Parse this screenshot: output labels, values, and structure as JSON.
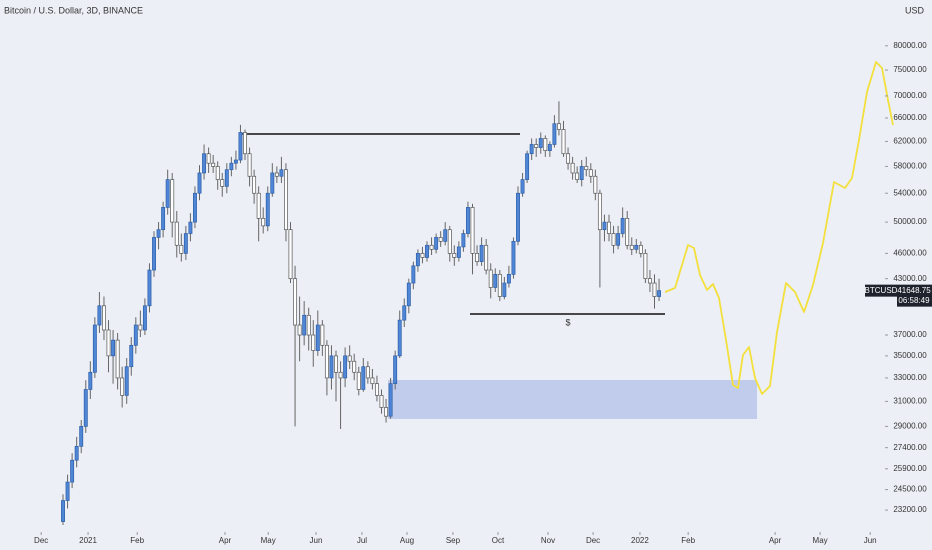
{
  "chart_data": {
    "type": "candlestick",
    "title": "Bitcoin / U.S. Dollar, 3D, BINANCE",
    "currency": "USD",
    "symbol": "BTCUSD",
    "last_price_label": "41648.75",
    "countdown": "06:58:49",
    "support_label": "$",
    "log_scale": true,
    "up_color": "#4f86d6",
    "down_color": "#ffffff",
    "ylim": [
      22000,
      90400
    ],
    "xlim": [
      -13.85,
      180.66
    ],
    "yticks": [
      {
        "value": 23200,
        "label": "23200.00"
      },
      {
        "value": 24500,
        "label": "24500.00"
      },
      {
        "value": 25900,
        "label": "25900.00"
      },
      {
        "value": 27400,
        "label": "27400.00"
      },
      {
        "value": 29000,
        "label": "29000.00"
      },
      {
        "value": 31000,
        "label": "31000.00"
      },
      {
        "value": 33000,
        "label": "33000.00"
      },
      {
        "value": 35000,
        "label": "35000.00"
      },
      {
        "value": 37000,
        "label": "37000.00"
      },
      {
        "value": 43000,
        "label": "43000.00"
      },
      {
        "value": 46000,
        "label": "46000.00"
      },
      {
        "value": 50000,
        "label": "50000.00"
      },
      {
        "value": 54000,
        "label": "54000.00"
      },
      {
        "value": 58000,
        "label": "58000.00"
      },
      {
        "value": 62000,
        "label": "62000.00"
      },
      {
        "value": 66000,
        "label": "66000.00"
      },
      {
        "value": 70000,
        "label": "70000.00"
      },
      {
        "value": 75000,
        "label": "75000.00"
      },
      {
        "value": 80000,
        "label": "80000.00"
      }
    ],
    "xticks": [
      {
        "value": -4.8,
        "label": "Dec"
      },
      {
        "value": 5.5,
        "label": "2021"
      },
      {
        "value": 16.3,
        "label": "Feb"
      },
      {
        "value": 35.6,
        "label": "Apr"
      },
      {
        "value": 45.1,
        "label": "May"
      },
      {
        "value": 55.6,
        "label": "Jun"
      },
      {
        "value": 65.7,
        "label": "Jul"
      },
      {
        "value": 75.6,
        "label": "Aug"
      },
      {
        "value": 85.7,
        "label": "Sep"
      },
      {
        "value": 95.6,
        "label": "Oct"
      },
      {
        "value": 106.6,
        "label": "Nov"
      },
      {
        "value": 116.5,
        "label": "Dec"
      },
      {
        "value": 126.8,
        "label": "2022"
      },
      {
        "value": 137.4,
        "label": "Feb"
      },
      {
        "value": 156.5,
        "label": "Apr"
      },
      {
        "value": 166.4,
        "label": "May"
      },
      {
        "value": 177.4,
        "label": "Jun"
      }
    ],
    "candles": [
      [
        22500,
        24200,
        22300,
        23800
      ],
      [
        23800,
        25500,
        23300,
        25000
      ],
      [
        25000,
        27000,
        24600,
        26500
      ],
      [
        26500,
        28200,
        26000,
        27500
      ],
      [
        27500,
        29500,
        27000,
        29000
      ],
      [
        29000,
        32800,
        28500,
        32000
      ],
      [
        32000,
        34500,
        31200,
        33500
      ],
      [
        33500,
        38800,
        33000,
        38000
      ],
      [
        38000,
        41500,
        37200,
        40000
      ],
      [
        40000,
        41000,
        36500,
        37500
      ],
      [
        37500,
        38500,
        33500,
        35000
      ],
      [
        35000,
        37500,
        32500,
        36500
      ],
      [
        36500,
        37200,
        32000,
        33000
      ],
      [
        33000,
        34000,
        30500,
        31500
      ],
      [
        31500,
        34800,
        30800,
        34000
      ],
      [
        34000,
        36800,
        33200,
        36000
      ],
      [
        36000,
        38800,
        35200,
        38000
      ],
      [
        38000,
        39500,
        36800,
        37500
      ],
      [
        37500,
        40800,
        37000,
        40000
      ],
      [
        40000,
        44800,
        39300,
        44000
      ],
      [
        44000,
        48800,
        43200,
        48000
      ],
      [
        48000,
        50000,
        46500,
        49000
      ],
      [
        49000,
        52800,
        48000,
        52000
      ],
      [
        52000,
        57500,
        51000,
        56000
      ],
      [
        56000,
        57000,
        48000,
        50000
      ],
      [
        50000,
        51500,
        45500,
        47000
      ],
      [
        47000,
        48500,
        45000,
        46000
      ],
      [
        46000,
        49500,
        45200,
        48500
      ],
      [
        48500,
        51200,
        47500,
        50000
      ],
      [
        50000,
        55000,
        49200,
        54000
      ],
      [
        54000,
        58200,
        53000,
        57000
      ],
      [
        57000,
        61500,
        56000,
        60000
      ],
      [
        60000,
        61000,
        57000,
        58500
      ],
      [
        58500,
        59800,
        57000,
        58000
      ],
      [
        58000,
        58800,
        54500,
        56000
      ],
      [
        56000,
        57000,
        53500,
        55000
      ],
      [
        55000,
        58500,
        54000,
        57500
      ],
      [
        57500,
        59500,
        56500,
        58500
      ],
      [
        58500,
        60500,
        57500,
        59000
      ],
      [
        59000,
        64800,
        58500,
        63500
      ],
      [
        63500,
        64000,
        59000,
        60000
      ],
      [
        60000,
        61000,
        55000,
        56500
      ],
      [
        56500,
        57500,
        52500,
        54000
      ],
      [
        54000,
        55000,
        47500,
        50500
      ],
      [
        50500,
        52000,
        48500,
        49500
      ],
      [
        49500,
        55000,
        48800,
        54000
      ],
      [
        54000,
        58500,
        53500,
        57000
      ],
      [
        57000,
        58000,
        55500,
        56500
      ],
      [
        56500,
        59500,
        55500,
        57500
      ],
      [
        57500,
        58500,
        47500,
        49000
      ],
      [
        49000,
        50000,
        42500,
        43000
      ],
      [
        43000,
        44500,
        29000,
        38000
      ],
      [
        38000,
        41000,
        34500,
        37000
      ],
      [
        37000,
        40500,
        36000,
        39000
      ],
      [
        39000,
        39800,
        35500,
        37000
      ],
      [
        37000,
        38500,
        34000,
        35500
      ],
      [
        35500,
        39500,
        35000,
        38000
      ],
      [
        38000,
        38500,
        35000,
        36000
      ],
      [
        36000,
        36500,
        31500,
        33000
      ],
      [
        33000,
        36000,
        32000,
        35000
      ],
      [
        35000,
        35500,
        31000,
        33500
      ],
      [
        33500,
        34500,
        28800,
        33000
      ],
      [
        33000,
        35800,
        32200,
        35000
      ],
      [
        35000,
        36000,
        33800,
        34500
      ],
      [
        34500,
        35200,
        32800,
        33500
      ],
      [
        33500,
        34000,
        31500,
        32000
      ],
      [
        32000,
        34800,
        31800,
        34000
      ],
      [
        34000,
        34500,
        32500,
        33000
      ],
      [
        33000,
        33800,
        32000,
        32500
      ],
      [
        32500,
        33200,
        31000,
        31500
      ],
      [
        31500,
        32000,
        30000,
        30500
      ],
      [
        30500,
        31200,
        29300,
        29800
      ],
      [
        29800,
        33000,
        29600,
        32500
      ],
      [
        32500,
        35500,
        32000,
        35000
      ],
      [
        35000,
        39500,
        34800,
        38500
      ],
      [
        38500,
        40800,
        37800,
        40000
      ],
      [
        40000,
        43000,
        39200,
        42500
      ],
      [
        42500,
        45000,
        41800,
        44500
      ],
      [
        44500,
        46500,
        43800,
        46000
      ],
      [
        46000,
        46800,
        44800,
        45500
      ],
      [
        45500,
        47500,
        45000,
        47000
      ],
      [
        47000,
        48000,
        45800,
        46500
      ],
      [
        46500,
        48500,
        46000,
        48000
      ],
      [
        48000,
        48800,
        46800,
        47500
      ],
      [
        47500,
        50000,
        47000,
        49000
      ],
      [
        49000,
        49500,
        45000,
        46000
      ],
      [
        46000,
        47000,
        44500,
        45500
      ],
      [
        45500,
        47500,
        45000,
        46800
      ],
      [
        46800,
        49000,
        46200,
        48500
      ],
      [
        48500,
        52800,
        48000,
        52000
      ],
      [
        52000,
        52500,
        43500,
        46000
      ],
      [
        46000,
        47000,
        44500,
        45000
      ],
      [
        45000,
        48000,
        44500,
        47000
      ],
      [
        47000,
        47800,
        43500,
        44000
      ],
      [
        44000,
        44800,
        40800,
        42000
      ],
      [
        42000,
        44200,
        41500,
        43500
      ],
      [
        43500,
        44000,
        40500,
        41000
      ],
      [
        41000,
        43200,
        40700,
        42500
      ],
      [
        42500,
        44500,
        42000,
        43500
      ],
      [
        43500,
        48000,
        43000,
        47500
      ],
      [
        47500,
        55000,
        47000,
        54000
      ],
      [
        54000,
        57000,
        53500,
        56000
      ],
      [
        56000,
        60500,
        55500,
        60000
      ],
      [
        60000,
        62500,
        59000,
        61500
      ],
      [
        61500,
        62500,
        59500,
        61000
      ],
      [
        61000,
        63500,
        60000,
        62500
      ],
      [
        62500,
        63000,
        59500,
        60500
      ],
      [
        60500,
        62000,
        59500,
        61500
      ],
      [
        61500,
        66500,
        61000,
        65000
      ],
      [
        65000,
        69000,
        63000,
        64000
      ],
      [
        64000,
        65500,
        59500,
        60000
      ],
      [
        60000,
        61000,
        57500,
        58500
      ],
      [
        58500,
        59500,
        56000,
        57000
      ],
      [
        57000,
        58000,
        55500,
        56000
      ],
      [
        56000,
        59000,
        55000,
        58000
      ],
      [
        58000,
        59500,
        56500,
        57500
      ],
      [
        57500,
        58500,
        55500,
        56500
      ],
      [
        56500,
        57500,
        53000,
        54000
      ],
      [
        54000,
        54500,
        42000,
        49000
      ],
      [
        49000,
        51000,
        47500,
        50000
      ],
      [
        50000,
        51000,
        47500,
        48500
      ],
      [
        48500,
        49500,
        46000,
        47000
      ],
      [
        47000,
        49500,
        46500,
        48500
      ],
      [
        48500,
        52000,
        48000,
        50500
      ],
      [
        50500,
        51500,
        46500,
        47000
      ],
      [
        47000,
        48000,
        45800,
        46500
      ],
      [
        46500,
        47800,
        46000,
        47000
      ],
      [
        47000,
        47500,
        45500,
        46000
      ],
      [
        46000,
        46500,
        42500,
        43000
      ],
      [
        43000,
        44000,
        41500,
        42500
      ],
      [
        42500,
        43500,
        39700,
        41000
      ],
      [
        41000,
        43000,
        40500,
        41648.75
      ]
    ]
  }
}
